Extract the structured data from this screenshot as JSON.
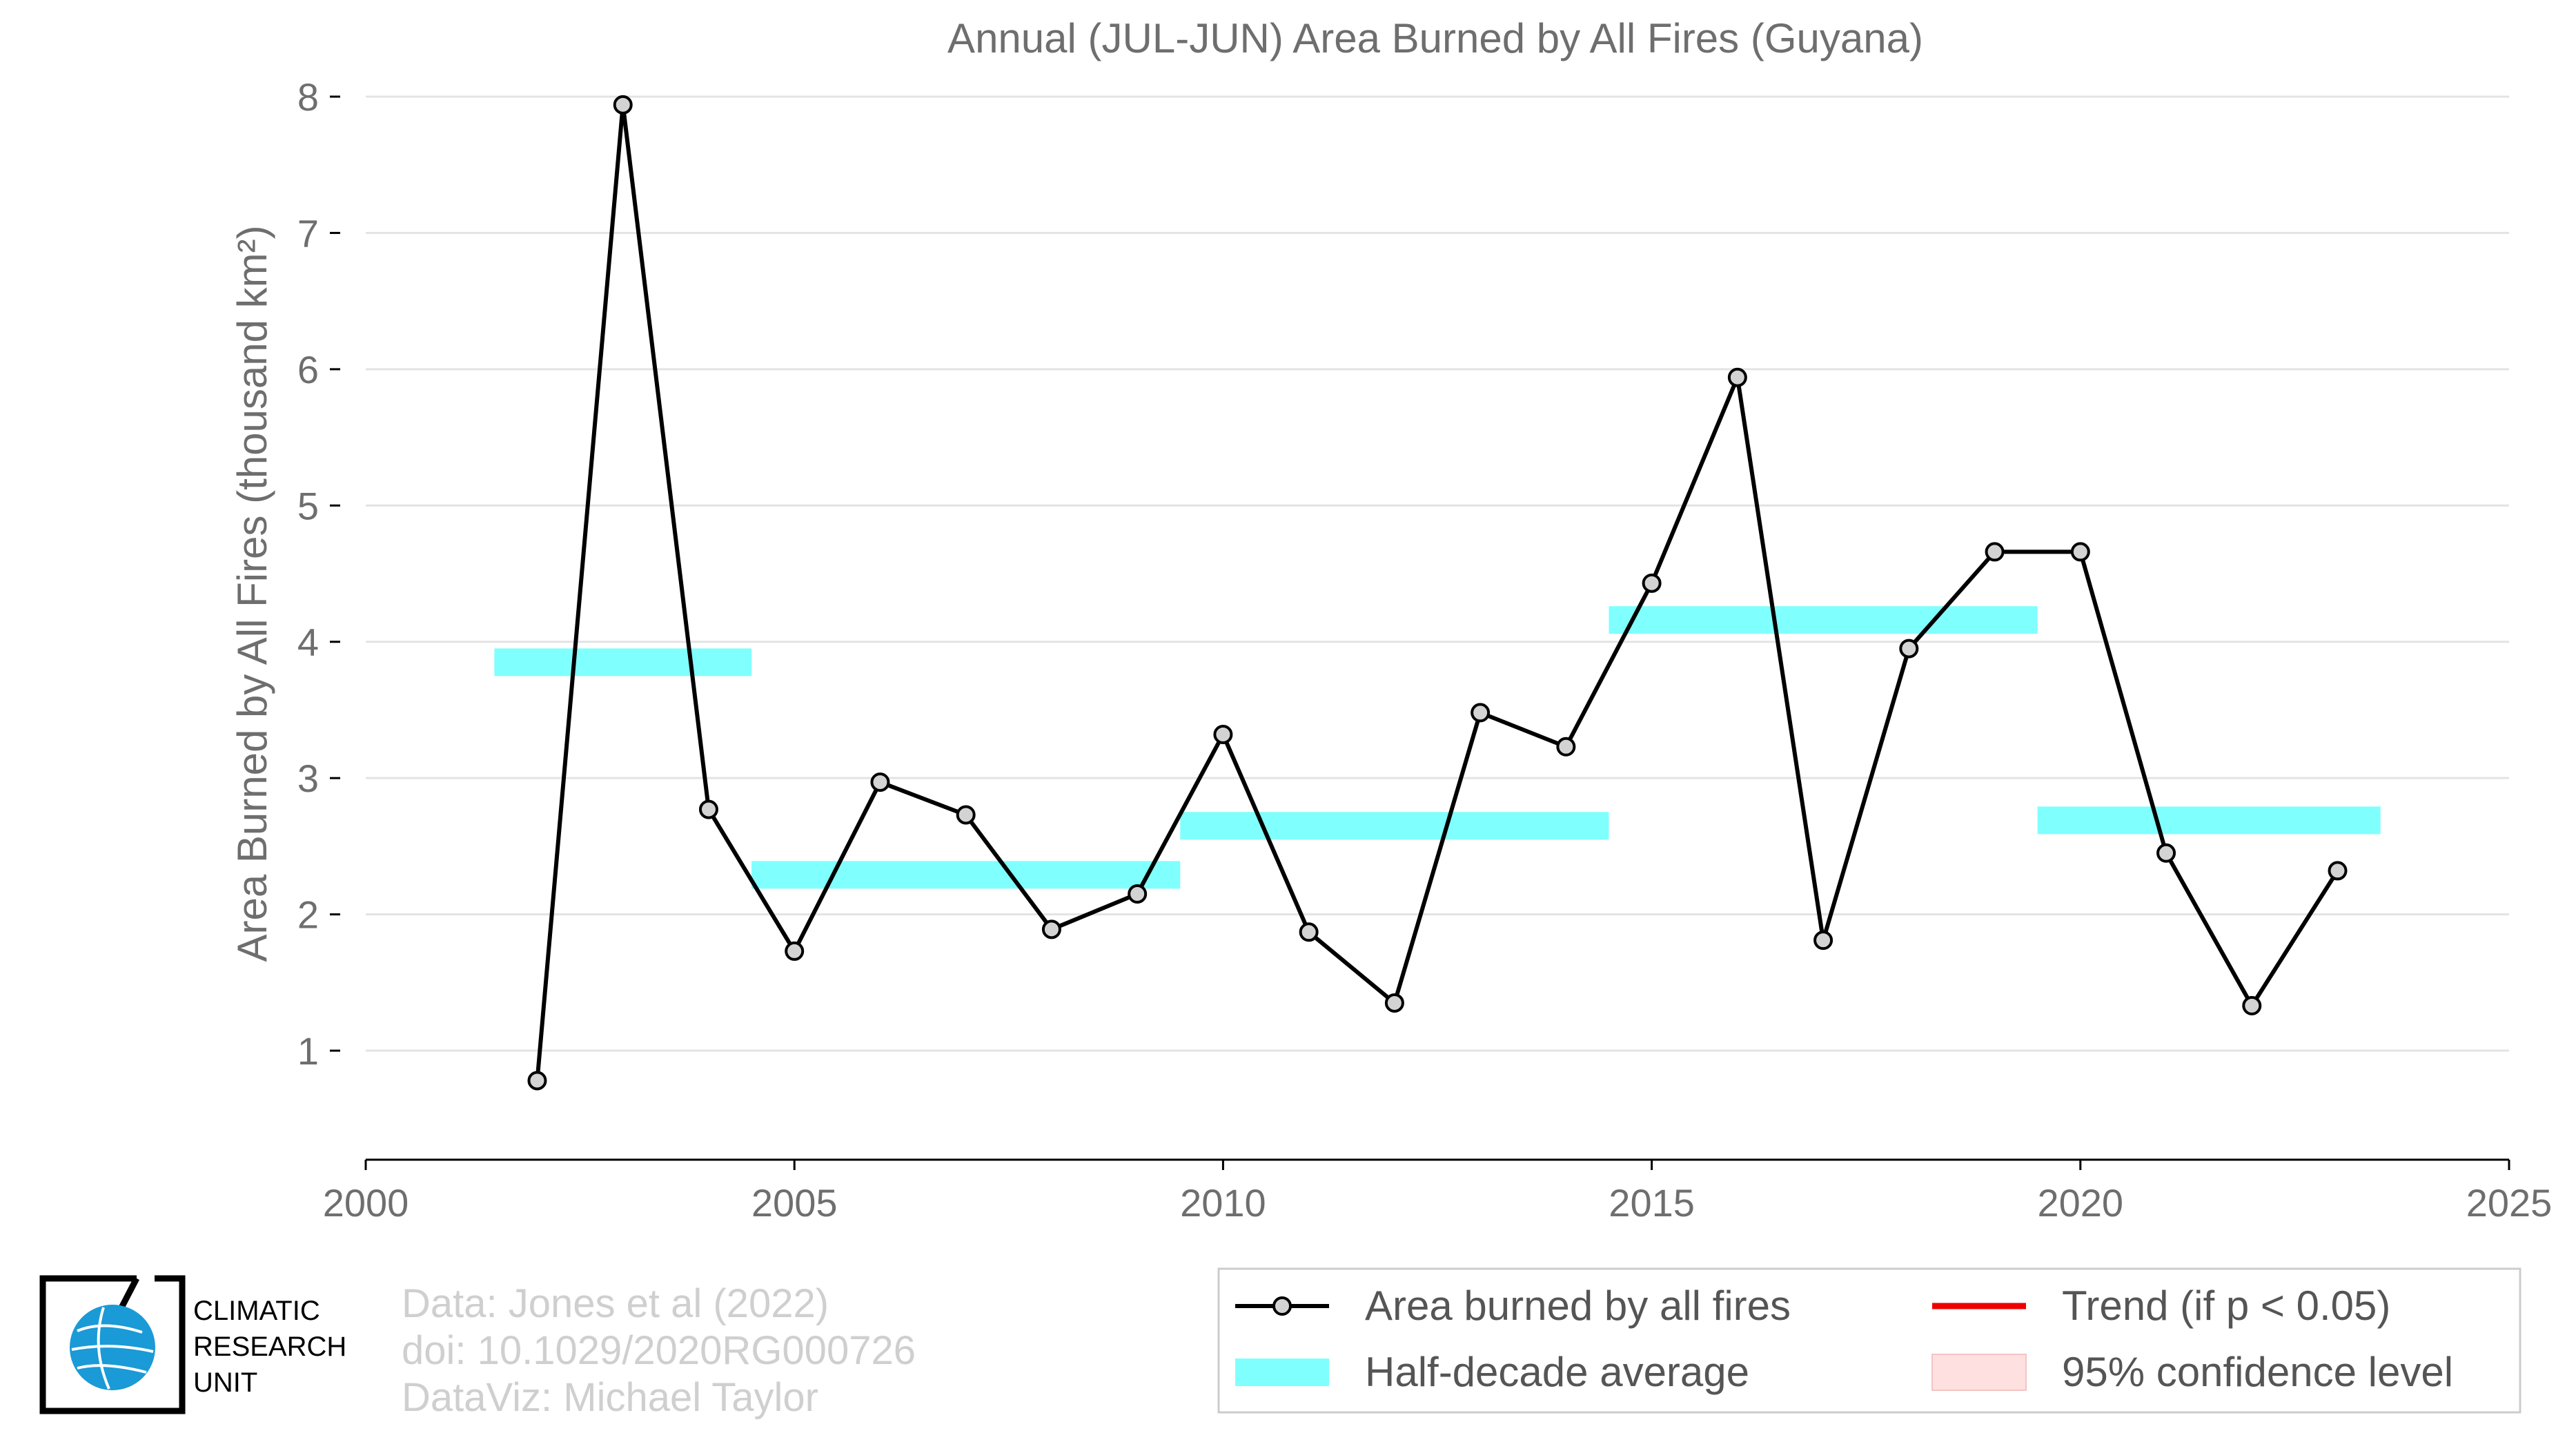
{
  "chart_data": {
    "type": "line",
    "title": "Annual (JUL-JUN) Area Burned by All Fires (Guyana)",
    "ylabel": "Area Burned by All Fires (thousand km²)",
    "xlabel": "",
    "xlim": [
      2000,
      2025
    ],
    "ylim": [
      0.2,
      8.0
    ],
    "xticks": [
      2000,
      2005,
      2010,
      2015,
      2020,
      2025
    ],
    "yticks": [
      1,
      2,
      3,
      4,
      5,
      6,
      7,
      8
    ],
    "grid": "horizontal",
    "series": [
      {
        "name": "Area burned by all fires",
        "color": "#000000",
        "marker_fill": "#d3d3d3",
        "x": [
          2002,
          2003,
          2004,
          2005,
          2006,
          2007,
          2008,
          2009,
          2010,
          2011,
          2012,
          2013,
          2014,
          2015,
          2016,
          2017,
          2018,
          2019,
          2020,
          2021,
          2022,
          2023
        ],
        "y": [
          0.78,
          7.94,
          2.77,
          1.73,
          2.97,
          2.73,
          1.89,
          2.15,
          3.32,
          1.87,
          1.35,
          3.48,
          3.23,
          4.43,
          5.94,
          1.81,
          3.95,
          4.66,
          4.66,
          2.45,
          1.33,
          2.32
        ]
      }
    ],
    "half_decade_averages": {
      "name": "Half-decade average",
      "color": "#80ffff",
      "segments": [
        {
          "x0": 2001.5,
          "x1": 2004.5,
          "y": 3.85
        },
        {
          "x0": 2004.5,
          "x1": 2009.5,
          "y": 2.29
        },
        {
          "x0": 2009.5,
          "x1": 2014.5,
          "y": 2.65
        },
        {
          "x0": 2014.5,
          "x1": 2019.5,
          "y": 4.16
        },
        {
          "x0": 2019.5,
          "x1": 2023.5,
          "y": 2.69
        }
      ]
    },
    "legend": {
      "position": "bottom-right",
      "entries": [
        {
          "label": "Area burned by all fires",
          "kind": "line-marker",
          "color": "#000000"
        },
        {
          "label": "Trend (if p < 0.05)",
          "kind": "line",
          "color": "#ee0000"
        },
        {
          "label": "Half-decade average",
          "kind": "band",
          "color": "#80ffff"
        },
        {
          "label": "95% confidence level",
          "kind": "patch",
          "color": "#ffe0e0"
        }
      ]
    }
  },
  "credits": {
    "data": "Data: Jones et al (2022)",
    "doi": "doi: 10.1029/2020RG000726",
    "dataviz": "DataViz: Michael Taylor"
  },
  "logo": {
    "lines": [
      "CLIMATIC",
      "RESEARCH",
      "UNIT"
    ],
    "icon": "globe-icon",
    "globe_color": "#1a9ad6"
  }
}
